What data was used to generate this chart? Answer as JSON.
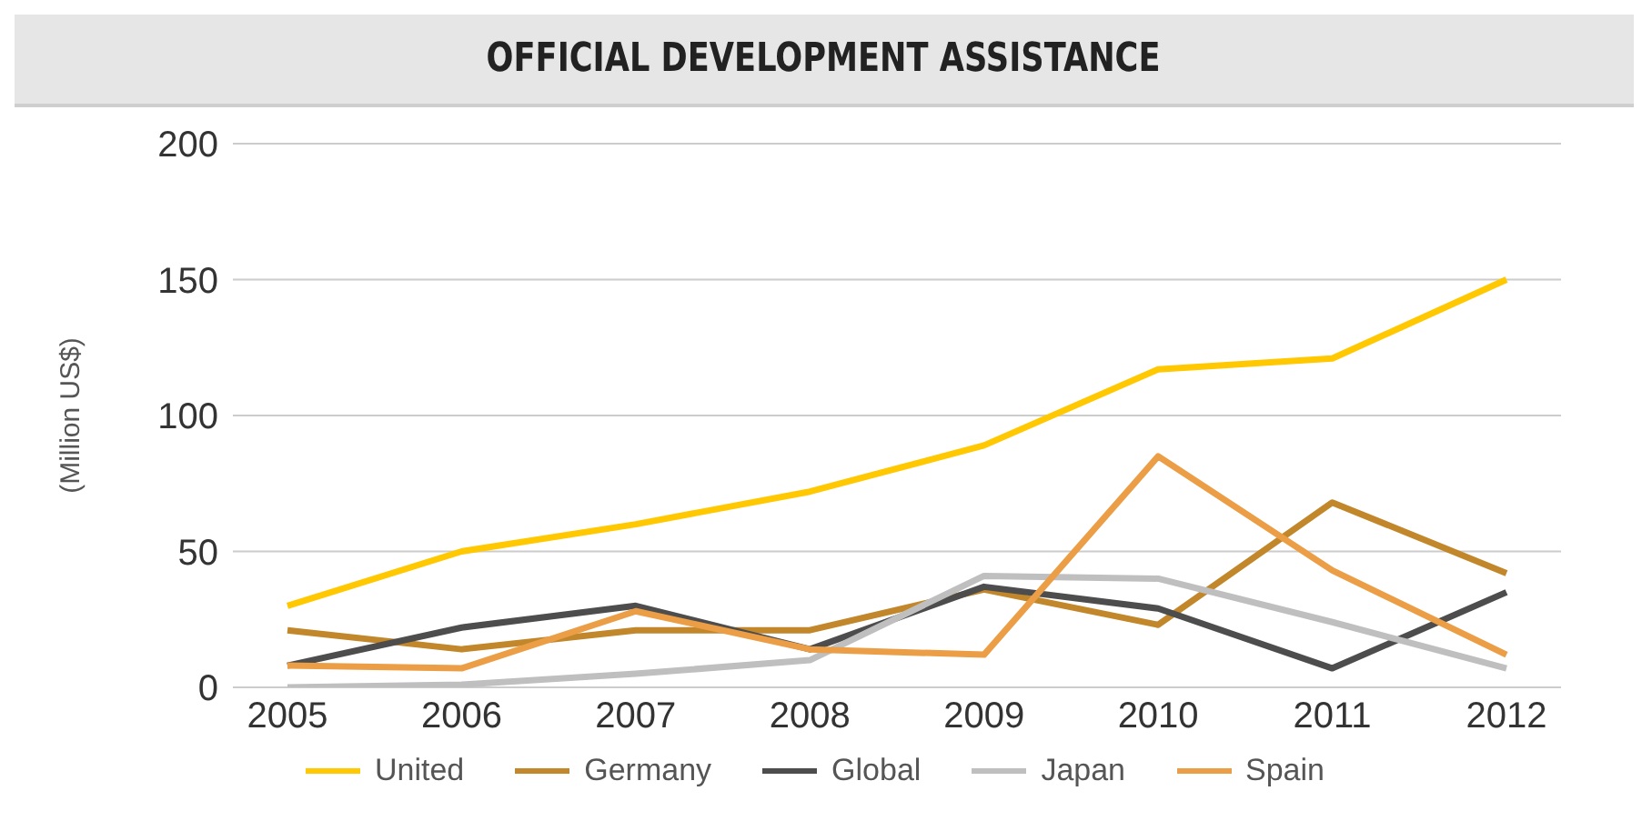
{
  "chart_data": {
    "type": "line",
    "title": "OFFICIAL DEVELOPMENT ASSISTANCE",
    "ylabel": "(Million US$)",
    "categories": [
      "2005",
      "2006",
      "2007",
      "2008",
      "2009",
      "2010",
      "2011",
      "2012"
    ],
    "series": [
      {
        "name": "United",
        "color": "#ffc800",
        "values": [
          30,
          50,
          60,
          72,
          89,
          117,
          121,
          150
        ]
      },
      {
        "name": "Germany",
        "color": "#c1872a",
        "values": [
          21,
          14,
          21,
          21,
          36,
          23,
          68,
          42
        ]
      },
      {
        "name": "Global",
        "color": "#4d4d4d",
        "values": [
          8,
          22,
          30,
          14,
          37,
          29,
          7,
          35
        ]
      },
      {
        "name": "Japan",
        "color": "#bfbfbf",
        "values": [
          0,
          1,
          5,
          10,
          41,
          40,
          24,
          7
        ]
      },
      {
        "name": "Spain",
        "color": "#eb9e45",
        "values": [
          8,
          7,
          28,
          14,
          12,
          85,
          43,
          12
        ]
      }
    ],
    "ylim": [
      0,
      200
    ],
    "yticks": [
      0,
      50,
      100,
      150,
      200
    ],
    "grid": "y",
    "legend": "bottom",
    "marker": "none",
    "line_style": "solid"
  }
}
